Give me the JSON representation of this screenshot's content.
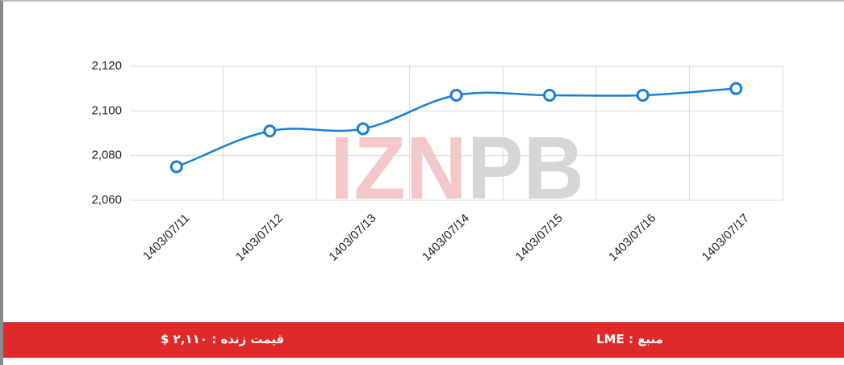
{
  "chart_data": {
    "type": "line",
    "categories": [
      "1403/07/11",
      "1403/07/12",
      "1403/07/13",
      "1403/07/14",
      "1403/07/15",
      "1403/07/16",
      "1403/07/17"
    ],
    "series": [
      {
        "color": "#1a7fd4",
        "values": [
          2075,
          2091,
          2092,
          2107,
          2107,
          2107,
          2110
        ]
      }
    ],
    "ylim": [
      2060,
      2120
    ],
    "yticks": [
      {
        "value": 2060,
        "label": "2,060"
      },
      {
        "value": 2080,
        "label": "2,080"
      },
      {
        "value": 2100,
        "label": "2,100"
      },
      {
        "value": 2120,
        "label": "2,120"
      }
    ],
    "grid": true
  },
  "watermark": [
    "IZN",
    "PB"
  ],
  "footer": {
    "price": "قیمت زنده : ۲,۱۱۰ $",
    "source": "منبع : LME"
  }
}
